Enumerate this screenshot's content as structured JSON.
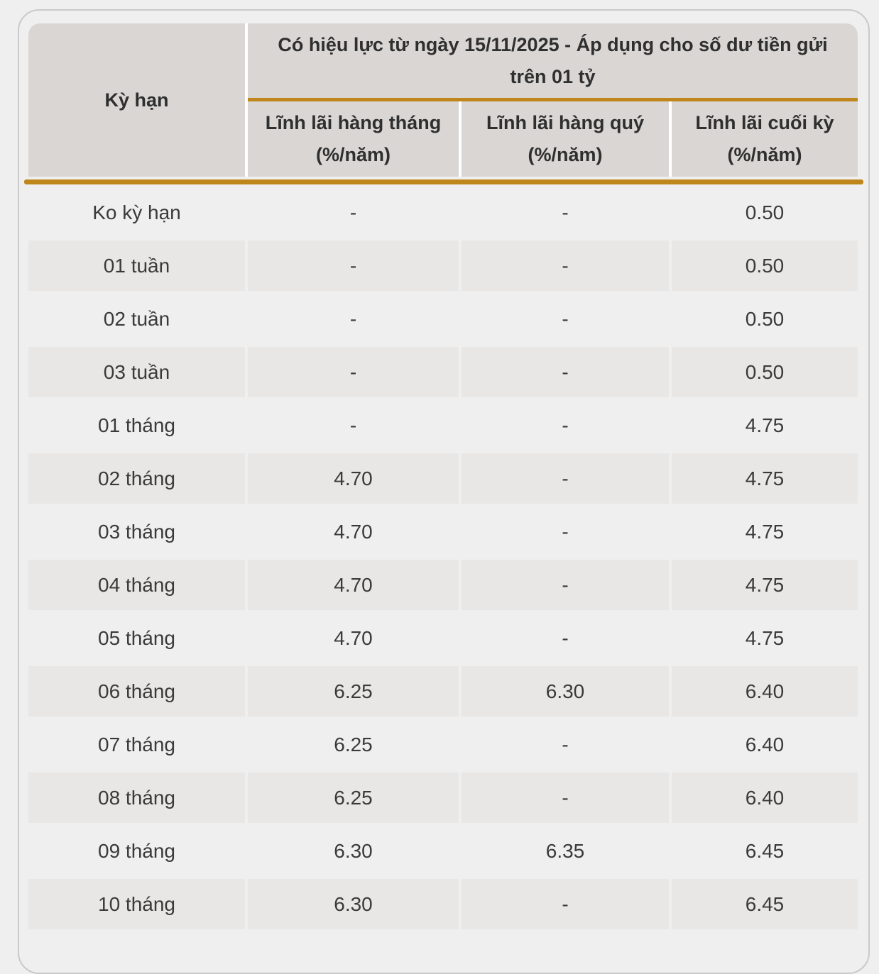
{
  "colors": {
    "page_background": "#F0EFF0",
    "accent_gold": "#BF861C",
    "header_cell_bg": "#D9D6D4",
    "stripe_cell_bg": "#E8E7E6",
    "panel_border": "#C9C9C9",
    "text_dark": "#2F2F2F"
  },
  "table": {
    "term_column_header": "Kỳ hạn",
    "banner": "Có hiệu lực từ ngày 15/11/2025 - Áp dụng cho số dư tiền gửi trên 01 tỷ",
    "rate_columns": [
      {
        "label": "Lĩnh lãi hàng tháng",
        "unit": "(%/năm)"
      },
      {
        "label": "Lĩnh lãi hàng quý",
        "unit": "(%/năm)"
      },
      {
        "label": "Lĩnh lãi cuối kỳ",
        "unit": "(%/năm)"
      }
    ],
    "rows": [
      {
        "term": "Ko kỳ hạn",
        "monthly": "-",
        "quarterly": "-",
        "end_of_term": "0.50"
      },
      {
        "term": "01 tuần",
        "monthly": "-",
        "quarterly": "-",
        "end_of_term": "0.50"
      },
      {
        "term": "02 tuần",
        "monthly": "-",
        "quarterly": "-",
        "end_of_term": "0.50"
      },
      {
        "term": "03 tuần",
        "monthly": "-",
        "quarterly": "-",
        "end_of_term": "0.50"
      },
      {
        "term": "01 tháng",
        "monthly": "-",
        "quarterly": "-",
        "end_of_term": "4.75"
      },
      {
        "term": "02 tháng",
        "monthly": "4.70",
        "quarterly": "-",
        "end_of_term": "4.75"
      },
      {
        "term": "03 tháng",
        "monthly": "4.70",
        "quarterly": "-",
        "end_of_term": "4.75"
      },
      {
        "term": "04 tháng",
        "monthly": "4.70",
        "quarterly": "-",
        "end_of_term": "4.75"
      },
      {
        "term": "05 tháng",
        "monthly": "4.70",
        "quarterly": "-",
        "end_of_term": "4.75"
      },
      {
        "term": "06 tháng",
        "monthly": "6.25",
        "quarterly": "6.30",
        "end_of_term": "6.40"
      },
      {
        "term": "07 tháng",
        "monthly": "6.25",
        "quarterly": "-",
        "end_of_term": "6.40"
      },
      {
        "term": "08 tháng",
        "monthly": "6.25",
        "quarterly": "-",
        "end_of_term": "6.40"
      },
      {
        "term": "09 tháng",
        "monthly": "6.30",
        "quarterly": "6.35",
        "end_of_term": "6.45"
      },
      {
        "term": "10 tháng",
        "monthly": "6.30",
        "quarterly": "-",
        "end_of_term": "6.45"
      }
    ]
  }
}
